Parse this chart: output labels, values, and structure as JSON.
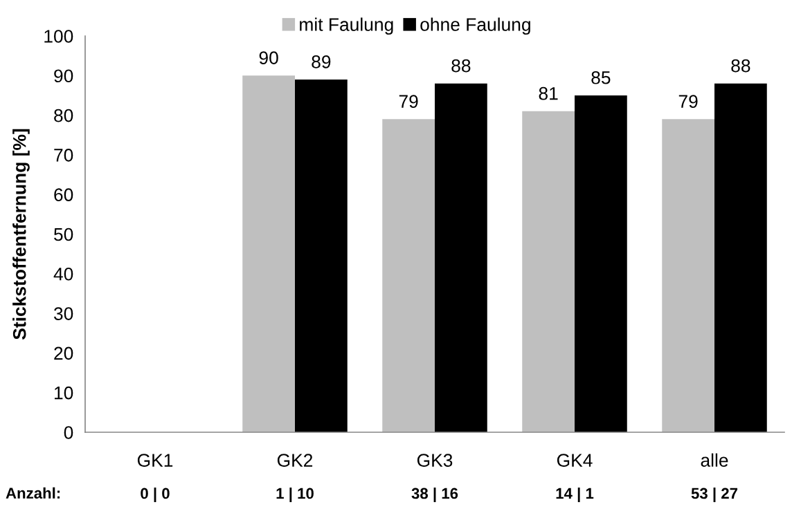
{
  "chart_data": {
    "type": "bar",
    "ylabel": "Stickstoffentfernung [%]",
    "categories": [
      "GK1",
      "GK2",
      "GK3",
      "GK4",
      "alle"
    ],
    "series": [
      {
        "name": "mit Faulung",
        "color": "#bfbfbf",
        "values": [
          null,
          90,
          79,
          81,
          79
        ]
      },
      {
        "name": "ohne Faulung",
        "color": "#000000",
        "values": [
          null,
          89,
          88,
          85,
          88
        ]
      }
    ],
    "ylim": [
      0,
      100
    ],
    "yticks": [
      0,
      10,
      20,
      30,
      40,
      50,
      60,
      70,
      80,
      90,
      100
    ],
    "data_labels": true,
    "legend": "top",
    "grid": false,
    "annotations": [
      "Anzahl:",
      "0 | 0",
      "1 | 10",
      "38 | 16",
      "14 | 1",
      "53 | 27"
    ]
  }
}
